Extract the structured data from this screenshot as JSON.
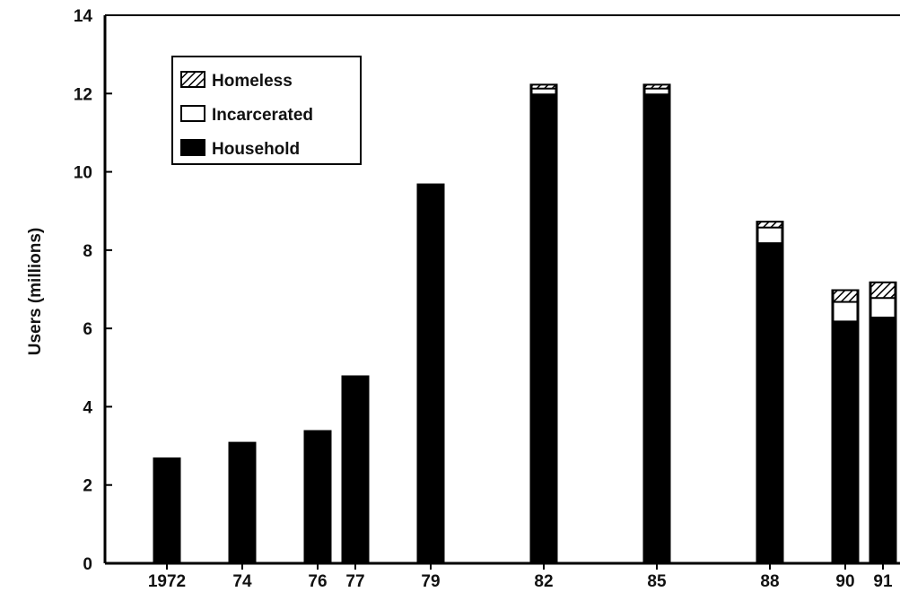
{
  "chart_data": {
    "type": "bar",
    "stacked": true,
    "categories": [
      "1972",
      "74",
      "76",
      "77",
      "79",
      "82",
      "85",
      "88",
      "90",
      "91"
    ],
    "series": [
      {
        "name": "Household",
        "values": [
          2.7,
          3.1,
          3.4,
          4.8,
          9.7,
          12.0,
          12.0,
          8.2,
          6.2,
          6.3
        ]
      },
      {
        "name": "Incarcerated",
        "values": [
          0,
          0,
          0,
          0,
          0,
          0.15,
          0.15,
          0.4,
          0.5,
          0.5
        ]
      },
      {
        "name": "Homeless",
        "values": [
          0,
          0,
          0,
          0,
          0,
          0.1,
          0.1,
          0.15,
          0.3,
          0.4
        ]
      }
    ],
    "ylabel": "Users (millions)",
    "ylim": [
      0,
      14
    ],
    "yticks": [
      "0",
      "2",
      "4",
      "6",
      "8",
      "10",
      "12",
      "14"
    ],
    "grid": false,
    "legend": {
      "position": "top-left",
      "entries": [
        "Homeless",
        "Incarcerated",
        "Household"
      ]
    },
    "colors": {
      "household": "#000000",
      "incarcerated": "#ffffff",
      "homeless": "hatched"
    }
  }
}
